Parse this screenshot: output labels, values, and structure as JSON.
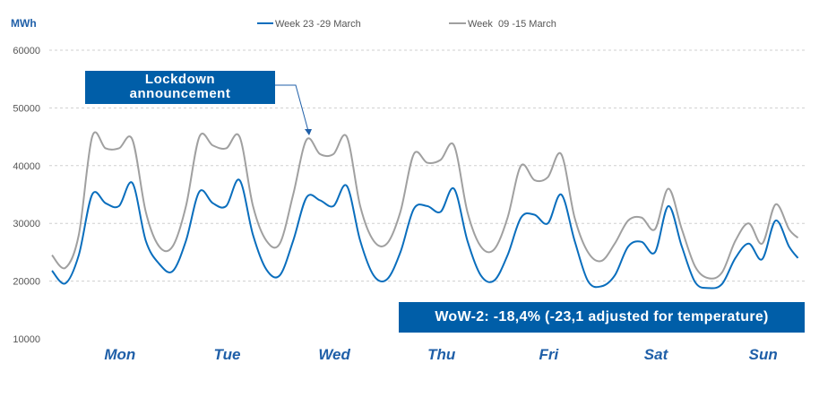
{
  "chart_data": {
    "type": "line",
    "ylabel": "MWh",
    "ylim": [
      10000,
      60000
    ],
    "yticks": [
      "10000",
      "20000",
      "30000",
      "40000",
      "50000",
      "60000"
    ],
    "ytick_values": [
      10000,
      20000,
      30000,
      40000,
      50000,
      60000
    ],
    "grid": true,
    "categories": [
      "Mon",
      "Tue",
      "Wed",
      "Thu",
      "Fri",
      "Sat",
      "Sun"
    ],
    "x_unit": "hours since Monday 00:00 (3-hour samples, approximate)",
    "x": [
      0,
      3,
      6,
      9,
      12,
      15,
      18,
      21,
      24,
      27,
      30,
      33,
      36,
      39,
      42,
      45,
      48,
      51,
      54,
      57,
      60,
      63,
      66,
      69,
      72,
      75,
      78,
      81,
      84,
      87,
      90,
      93,
      96,
      99,
      102,
      105,
      108,
      111,
      114,
      117,
      120,
      123,
      126,
      129,
      132,
      135,
      138,
      141,
      144,
      147,
      150,
      153,
      156,
      159,
      162,
      165,
      167
    ],
    "legend_position": "top",
    "series": [
      {
        "name": "Week 23 -29 March",
        "color": "#0a6ebd",
        "values": [
          21800,
          19600,
          24500,
          35000,
          33500,
          33000,
          37000,
          27000,
          23000,
          21700,
          27000,
          35500,
          33500,
          33000,
          37500,
          28000,
          22000,
          21000,
          27000,
          34500,
          34000,
          33000,
          36500,
          27000,
          21000,
          20300,
          25000,
          32500,
          33000,
          32000,
          36000,
          27000,
          21000,
          20100,
          24500,
          31000,
          31500,
          30000,
          35000,
          27000,
          20000,
          19100,
          21000,
          26000,
          26800,
          25000,
          33000,
          26000,
          19800,
          18800,
          19500,
          24000,
          26500,
          23800,
          30500,
          26000,
          24000
        ]
      },
      {
        "name": "Week  09 -15 March",
        "color": "#a0a0a0",
        "values": [
          24500,
          22300,
          28000,
          45000,
          43000,
          43000,
          44500,
          32000,
          26000,
          26000,
          33000,
          45000,
          43500,
          43000,
          45000,
          33000,
          27000,
          26500,
          35000,
          44500,
          42000,
          42000,
          45000,
          33000,
          27000,
          26500,
          32000,
          42000,
          40500,
          41000,
          43500,
          32000,
          26000,
          25500,
          31000,
          40000,
          37500,
          38000,
          42000,
          31000,
          25000,
          23500,
          26500,
          30500,
          31000,
          29000,
          36000,
          29000,
          22500,
          20500,
          21500,
          27000,
          30000,
          26500,
          33300,
          29000,
          27500
        ]
      }
    ],
    "annotations": {
      "lockdown": "Lockdown announcement",
      "lockdown_line1": "Lockdown",
      "lockdown_line2": "announcement",
      "wow": "WoW-2: -18,4% (-23,1 adjusted for temperature)"
    }
  }
}
